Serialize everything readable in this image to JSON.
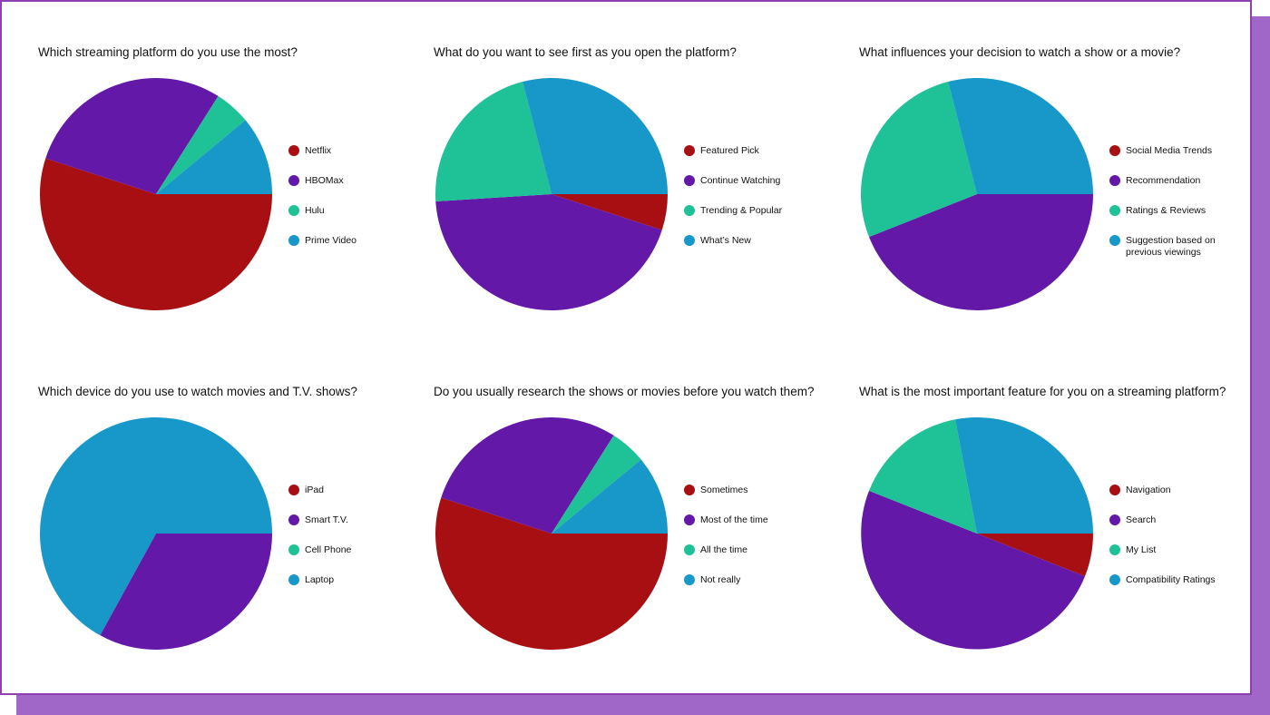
{
  "colors": {
    "red": "#a80f12",
    "purple": "#6318a7",
    "teal": "#1fc196",
    "blue": "#1798c9"
  },
  "chart_data": [
    {
      "type": "pie",
      "title": "Which streaming platform do you use the most?",
      "labels": [
        "Netflix",
        "HBOMax",
        "Hulu",
        "Prime Video"
      ],
      "values": [
        55,
        29,
        5,
        11
      ]
    },
    {
      "type": "pie",
      "title": "What do you want to see first as you open the platform?",
      "labels": [
        "Featured Pick",
        "Continue Watching",
        "Trending & Popular",
        "What’s New"
      ],
      "values": [
        5,
        44,
        22,
        29
      ]
    },
    {
      "type": "pie",
      "title": "What influences your decision to watch a show or a movie?",
      "labels": [
        "Social Media Trends",
        "Recommendation",
        "Ratings & Reviews",
        "Suggestion based on previous viewings"
      ],
      "values": [
        0,
        44,
        27,
        29
      ]
    },
    {
      "type": "pie",
      "title": "Which device do you use to watch movies and T.V. shows?",
      "labels": [
        "iPad",
        "Smart T.V.",
        "Cell Phone",
        "Laptop"
      ],
      "values": [
        0,
        33,
        0,
        67
      ]
    },
    {
      "type": "pie",
      "title": "Do you usually research the shows or movies before you watch them?",
      "labels": [
        "Sometimes",
        "Most of the time",
        "All the time",
        "Not really"
      ],
      "values": [
        55,
        29,
        5,
        11
      ]
    },
    {
      "type": "pie",
      "title": "What is the most important feature for you on a streaming platform?",
      "labels": [
        "Navigation",
        "Search",
        "My List",
        "Compatibility Ratings"
      ],
      "values": [
        6,
        50,
        16,
        28
      ]
    }
  ]
}
